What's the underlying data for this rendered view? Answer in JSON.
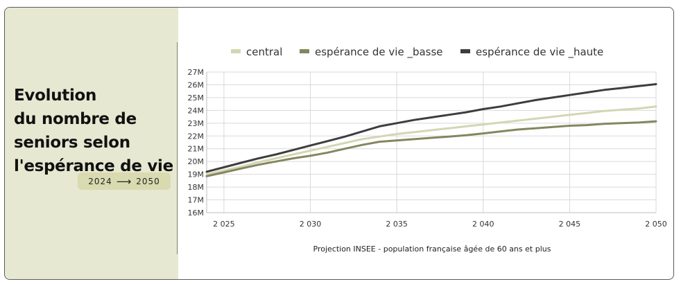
{
  "colors": {
    "sidebar_bg": "#e7e8d1",
    "pill_bg": "#d9dab0",
    "central": "#d4d6b3",
    "basse": "#84865e",
    "haute": "#3d3d3f",
    "grid": "#d9d9d9"
  },
  "sidebar": {
    "title_lines": [
      "Evolution",
      "du nombre de",
      "seniors selon",
      "l'espérance de vie"
    ],
    "period_start": "2024",
    "period_arrow": "⟶",
    "period_end": "2050"
  },
  "chart_data": {
    "type": "line",
    "title": "",
    "xlabel": "Projection INSEE - population française âgée de 60 ans et plus",
    "ylabel": "",
    "legend_position": "top",
    "grid": true,
    "xlim": [
      2024,
      2050
    ],
    "ylim": [
      16,
      27
    ],
    "x_ticks": [
      2025,
      2030,
      2035,
      2040,
      2045,
      2050
    ],
    "x_tick_labels": [
      "2 025",
      "2 030",
      "2 035",
      "2 040",
      "2 045",
      "2 050"
    ],
    "y_ticks": [
      16,
      17,
      18,
      19,
      20,
      21,
      22,
      23,
      24,
      25,
      26,
      27
    ],
    "y_tick_labels": [
      "16M",
      "17M",
      "18M",
      "19M",
      "20M",
      "21M",
      "22M",
      "23M",
      "24M",
      "25M",
      "26M",
      "27M"
    ],
    "x": [
      2024,
      2025,
      2026,
      2027,
      2028,
      2029,
      2030,
      2031,
      2032,
      2033,
      2034,
      2035,
      2036,
      2037,
      2038,
      2039,
      2040,
      2041,
      2042,
      2043,
      2044,
      2045,
      2046,
      2047,
      2048,
      2049,
      2050
    ],
    "series": [
      {
        "name": "central",
        "color": "#d4d6b3",
        "values": [
          19.0,
          19.3,
          19.6,
          19.95,
          20.25,
          20.55,
          20.85,
          21.15,
          21.45,
          21.75,
          21.95,
          22.15,
          22.3,
          22.45,
          22.6,
          22.75,
          22.9,
          23.05,
          23.2,
          23.35,
          23.5,
          23.65,
          23.8,
          23.95,
          24.05,
          24.15,
          24.3
        ]
      },
      {
        "name": "espérance de vie _basse",
        "color": "#84865e",
        "values": [
          18.85,
          19.15,
          19.45,
          19.75,
          20.0,
          20.25,
          20.45,
          20.7,
          21.0,
          21.3,
          21.55,
          21.65,
          21.75,
          21.85,
          21.95,
          22.05,
          22.2,
          22.35,
          22.5,
          22.6,
          22.7,
          22.8,
          22.85,
          22.95,
          23.0,
          23.05,
          23.15
        ]
      },
      {
        "name": "espérance de vie _haute",
        "color": "#3d3d3f",
        "values": [
          19.2,
          19.55,
          19.9,
          20.25,
          20.55,
          20.9,
          21.25,
          21.6,
          21.95,
          22.35,
          22.75,
          23.0,
          23.25,
          23.45,
          23.65,
          23.85,
          24.1,
          24.3,
          24.55,
          24.8,
          25.0,
          25.2,
          25.4,
          25.6,
          25.75,
          25.9,
          26.05
        ]
      }
    ]
  }
}
